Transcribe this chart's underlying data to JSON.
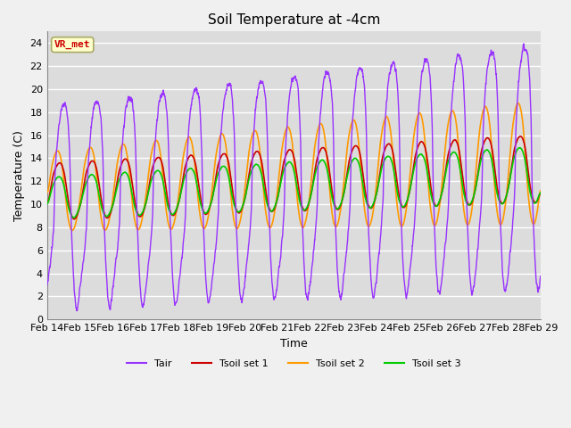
{
  "title": "Soil Temperature at -4cm",
  "xlabel": "Time",
  "ylabel": "Temperature (C)",
  "ylim": [
    0,
    25
  ],
  "yticks": [
    0,
    2,
    4,
    6,
    8,
    10,
    12,
    14,
    16,
    18,
    20,
    22,
    24
  ],
  "x_tick_labels": [
    "Feb 14",
    "Feb 15",
    "Feb 16",
    "Feb 17",
    "Feb 18",
    "Feb 19",
    "Feb 20",
    "Feb 21",
    "Feb 22",
    "Feb 23",
    "Feb 24",
    "Feb 25",
    "Feb 26",
    "Feb 27",
    "Feb 28",
    "Feb 29"
  ],
  "colors": {
    "Tair": "#9933FF",
    "Tsoil1": "#CC0000",
    "Tsoil2": "#FF9900",
    "Tsoil3": "#00CC00"
  },
  "bg_color": "#E8E8E8",
  "plot_bg": "#DCDCDC",
  "annotation_text": "VR_met",
  "annotation_color": "#CC0000",
  "annotation_bg": "#FFFFCC",
  "annotation_border": "#AAAA66",
  "figsize": [
    6.4,
    4.8
  ],
  "dpi": 100
}
